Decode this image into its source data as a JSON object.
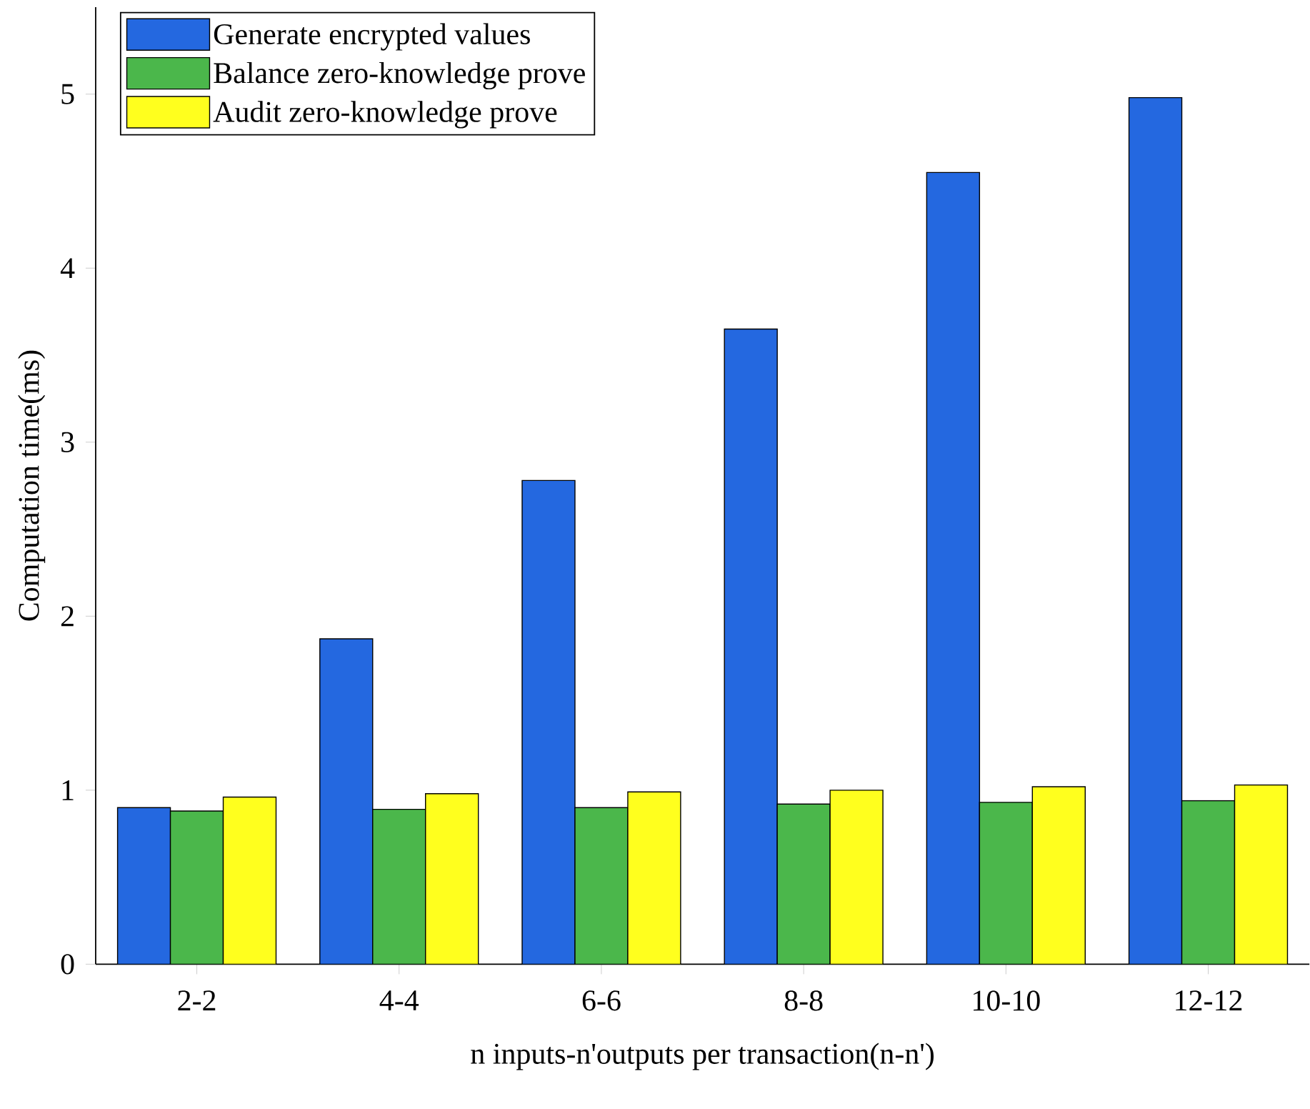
{
  "chart_data": {
    "type": "bar",
    "xlabel": "n inputs-n'outputs per transaction(n-n')",
    "ylabel": "Computation time(ms)",
    "categories": [
      "2-2",
      "4-4",
      "6-6",
      "8-8",
      "10-10",
      "12-12"
    ],
    "series": [
      {
        "name": "Generate encrypted values",
        "color": "#2468e0",
        "values": [
          0.9,
          1.87,
          2.78,
          3.65,
          4.55,
          4.98
        ]
      },
      {
        "name": "Balance zero-knowledge prove",
        "color": "#4bb74b",
        "values": [
          0.88,
          0.89,
          0.9,
          0.92,
          0.93,
          0.94
        ]
      },
      {
        "name": "Audit zero-knowledge prove",
        "color": "#ffff1e",
        "values": [
          0.96,
          0.98,
          0.99,
          1.0,
          1.02,
          1.03
        ]
      }
    ],
    "ylim": [
      0,
      5.5
    ],
    "yticks": [
      0,
      1,
      2,
      3,
      4,
      5
    ],
    "grid": false,
    "legend": "top left"
  }
}
